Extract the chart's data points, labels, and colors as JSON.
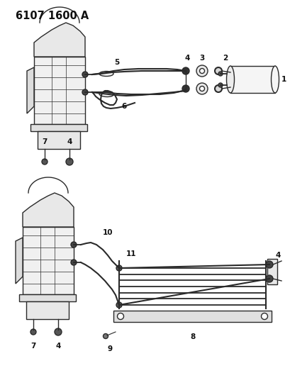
{
  "title": "6107 1600 A",
  "bg_color": "#ffffff",
  "line_color": "#2a2a2a",
  "label_color": "#111111",
  "figsize": [
    4.1,
    5.33
  ],
  "dpi": 100
}
